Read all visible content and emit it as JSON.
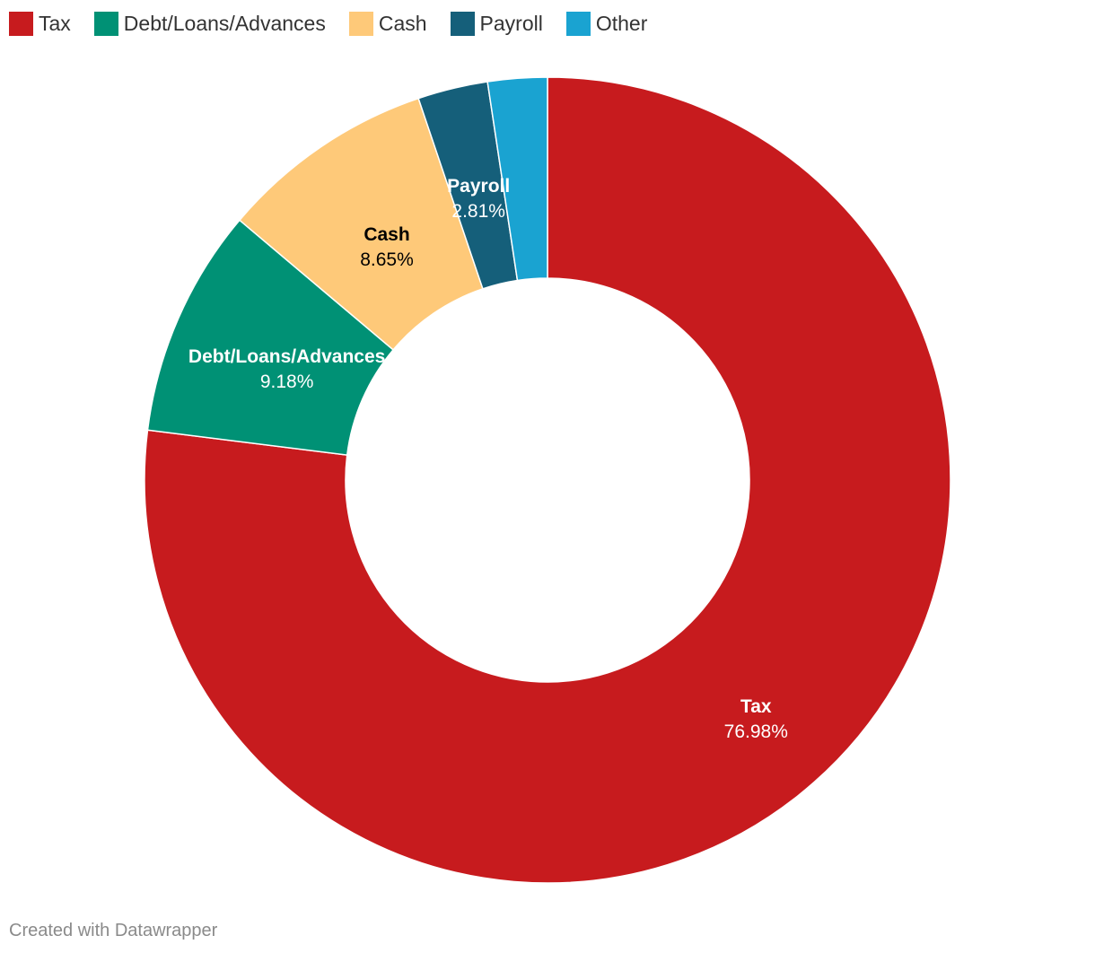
{
  "chart_data": {
    "type": "pie",
    "variant": "donut",
    "slices": [
      {
        "label": "Tax",
        "value": 76.98,
        "value_label": "76.98%",
        "color": "#c71b1e",
        "label_color": "#ffffff"
      },
      {
        "label": "Debt/Loans/Advances",
        "value": 9.18,
        "value_label": "9.18%",
        "color": "#009175",
        "label_color": "#ffffff"
      },
      {
        "label": "Cash",
        "value": 8.65,
        "value_label": "8.65%",
        "color": "#fec979",
        "label_color": "#000000"
      },
      {
        "label": "Payroll",
        "value": 2.81,
        "value_label": "2.81%",
        "color": "#155f7a",
        "label_color": "#ffffff"
      },
      {
        "label": "Other",
        "value": 2.38,
        "value_label": "",
        "color": "#1aa3d1",
        "label_color": "#ffffff"
      }
    ],
    "legend": {
      "position": "top-left",
      "items": [
        "Tax",
        "Debt/Loans/Advances",
        "Cash",
        "Payroll",
        "Other"
      ]
    },
    "start": "top",
    "direction": "clockwise"
  },
  "footer": {
    "credit": "Created with Datawrapper"
  }
}
